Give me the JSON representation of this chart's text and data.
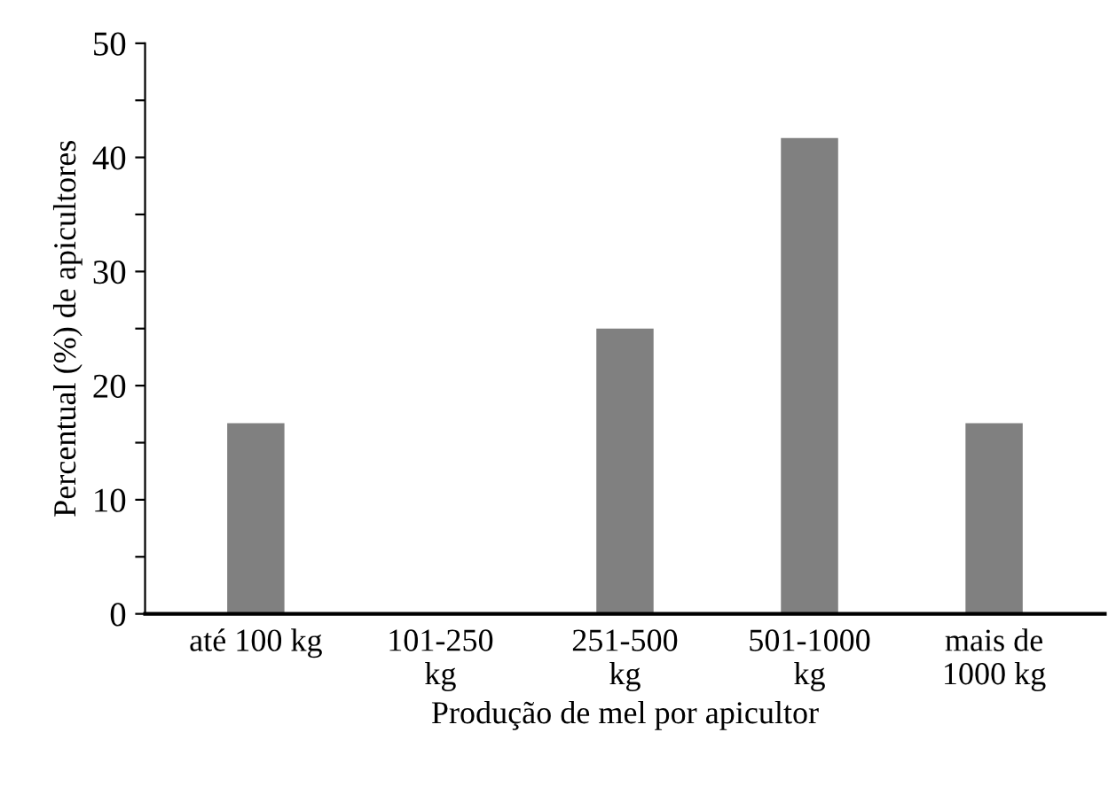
{
  "chart_data": {
    "type": "bar",
    "xlabel": "Produção de mel por apicultor",
    "ylabel": "Percentual (%) de apicultores",
    "categories": [
      "até 100 kg",
      "101-250\nkg",
      "251-500\nkg",
      "501-1000\nkg",
      "mais de\n1000 kg"
    ],
    "values": [
      16.7,
      0,
      25,
      41.7,
      16.7
    ],
    "color": "#808080",
    "ylim": [
      0,
      50
    ],
    "yticks": [
      0,
      {
        "value": 5,
        "label": null
      },
      10,
      {
        "value": 15,
        "label": null
      },
      20,
      {
        "value": 25,
        "label": null
      },
      30,
      {
        "value": 35,
        "label": null
      },
      40,
      {
        "value": 45,
        "label": null
      },
      50
    ],
    "grid": false
  }
}
